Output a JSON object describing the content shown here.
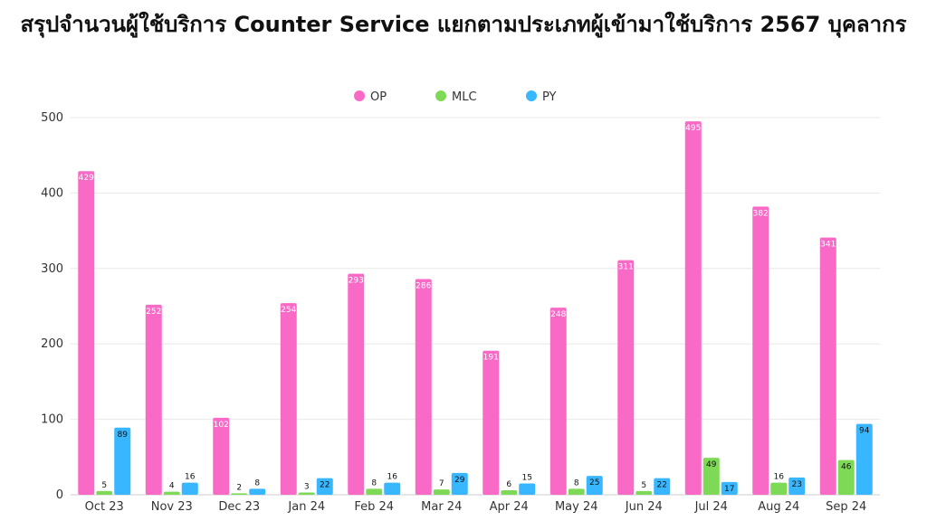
{
  "chart_data": {
    "type": "bar",
    "title": "สรุปจำนวนผู้ใช้บริการ Counter Service แยกตามประเภทผู้เข้ามาใช้บริการ 2567 บุคลากร",
    "categories": [
      "Oct 23",
      "Nov 23",
      "Dec 23",
      "Jan 24",
      "Feb 24",
      "Mar 24",
      "Apr 24",
      "May 24",
      "Jun 24",
      "Jul 24",
      "Aug 24",
      "Sep 24"
    ],
    "series": [
      {
        "name": "OP",
        "color": "#f96ac7",
        "values": [
          429,
          252,
          102,
          254,
          293,
          286,
          191,
          248,
          311,
          495,
          382,
          341
        ]
      },
      {
        "name": "MLC",
        "color": "#7ed957",
        "values": [
          5,
          4,
          2,
          3,
          8,
          7,
          6,
          8,
          5,
          49,
          16,
          46
        ]
      },
      {
        "name": "PY",
        "color": "#38b6ff",
        "values": [
          89,
          16,
          8,
          22,
          16,
          29,
          15,
          25,
          22,
          17,
          23,
          94
        ]
      }
    ],
    "ylim": [
      0,
      500
    ],
    "yticks": [
      0,
      100,
      200,
      300,
      400,
      500
    ],
    "grid": true,
    "legend_position": "top-center",
    "xlabel": "",
    "ylabel": ""
  }
}
